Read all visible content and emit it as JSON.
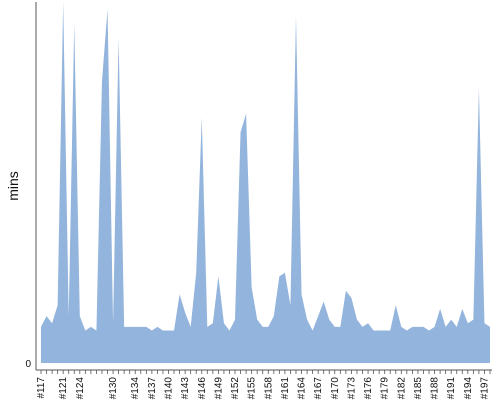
{
  "chart_data": {
    "type": "area",
    "title": "",
    "xlabel": "",
    "ylabel": "mins",
    "y_tick_labels": [
      "0"
    ],
    "ylim": [
      0,
      100
    ],
    "grid": false,
    "legend": "none",
    "colors": {
      "fill": "#93b4dc",
      "axis": "#555555",
      "text": "#111111"
    },
    "categories": [
      "#117",
      "#118",
      "#119",
      "#120",
      "#121",
      "#122",
      "#123",
      "#124",
      "#125",
      "#126",
      "#127",
      "#128",
      "#129",
      "#130",
      "#131",
      "#132",
      "#133",
      "#134",
      "#135",
      "#136",
      "#137",
      "#138",
      "#139",
      "#140",
      "#141",
      "#142",
      "#143",
      "#144",
      "#145",
      "#146",
      "#147",
      "#148",
      "#149",
      "#150",
      "#151",
      "#152",
      "#153",
      "#154",
      "#155",
      "#156",
      "#157",
      "#158",
      "#159",
      "#160",
      "#161",
      "#162",
      "#163",
      "#164",
      "#165",
      "#166",
      "#167",
      "#168",
      "#169",
      "#170",
      "#171",
      "#172",
      "#173",
      "#174",
      "#175",
      "#176",
      "#177",
      "#178",
      "#179",
      "#180",
      "#181",
      "#182",
      "#183",
      "#184",
      "#185",
      "#186",
      "#187",
      "#188",
      "#189",
      "#190",
      "#191",
      "#192",
      "#193",
      "#194",
      "#195",
      "#196",
      "#197",
      "#198"
    ],
    "tick_labels": [
      "#117",
      "#121",
      "#124",
      "#130",
      "#134",
      "#137",
      "#140",
      "#143",
      "#146",
      "#149",
      "#152",
      "#155",
      "#158",
      "#161",
      "#164",
      "#167",
      "#170",
      "#173",
      "#176",
      "#179",
      "#182",
      "#185",
      "#188",
      "#191",
      "#194",
      "#197"
    ],
    "values": [
      10,
      13,
      11,
      16,
      100,
      13,
      94,
      13,
      9,
      10,
      9,
      78,
      98,
      11,
      90,
      10,
      10,
      10,
      10,
      10,
      9,
      10,
      9,
      9,
      9,
      19,
      14,
      10,
      25,
      68,
      10,
      11,
      24,
      11,
      9,
      12,
      64,
      69,
      21,
      12,
      10,
      10,
      13,
      24,
      25,
      16,
      96,
      19,
      12,
      9,
      13,
      17,
      12,
      10,
      10,
      20,
      18,
      12,
      10,
      11,
      9,
      9,
      9,
      9,
      16,
      10,
      9,
      10,
      10,
      10,
      9,
      10,
      15,
      10,
      12,
      10,
      15,
      11,
      12,
      76,
      11,
      10
    ]
  }
}
